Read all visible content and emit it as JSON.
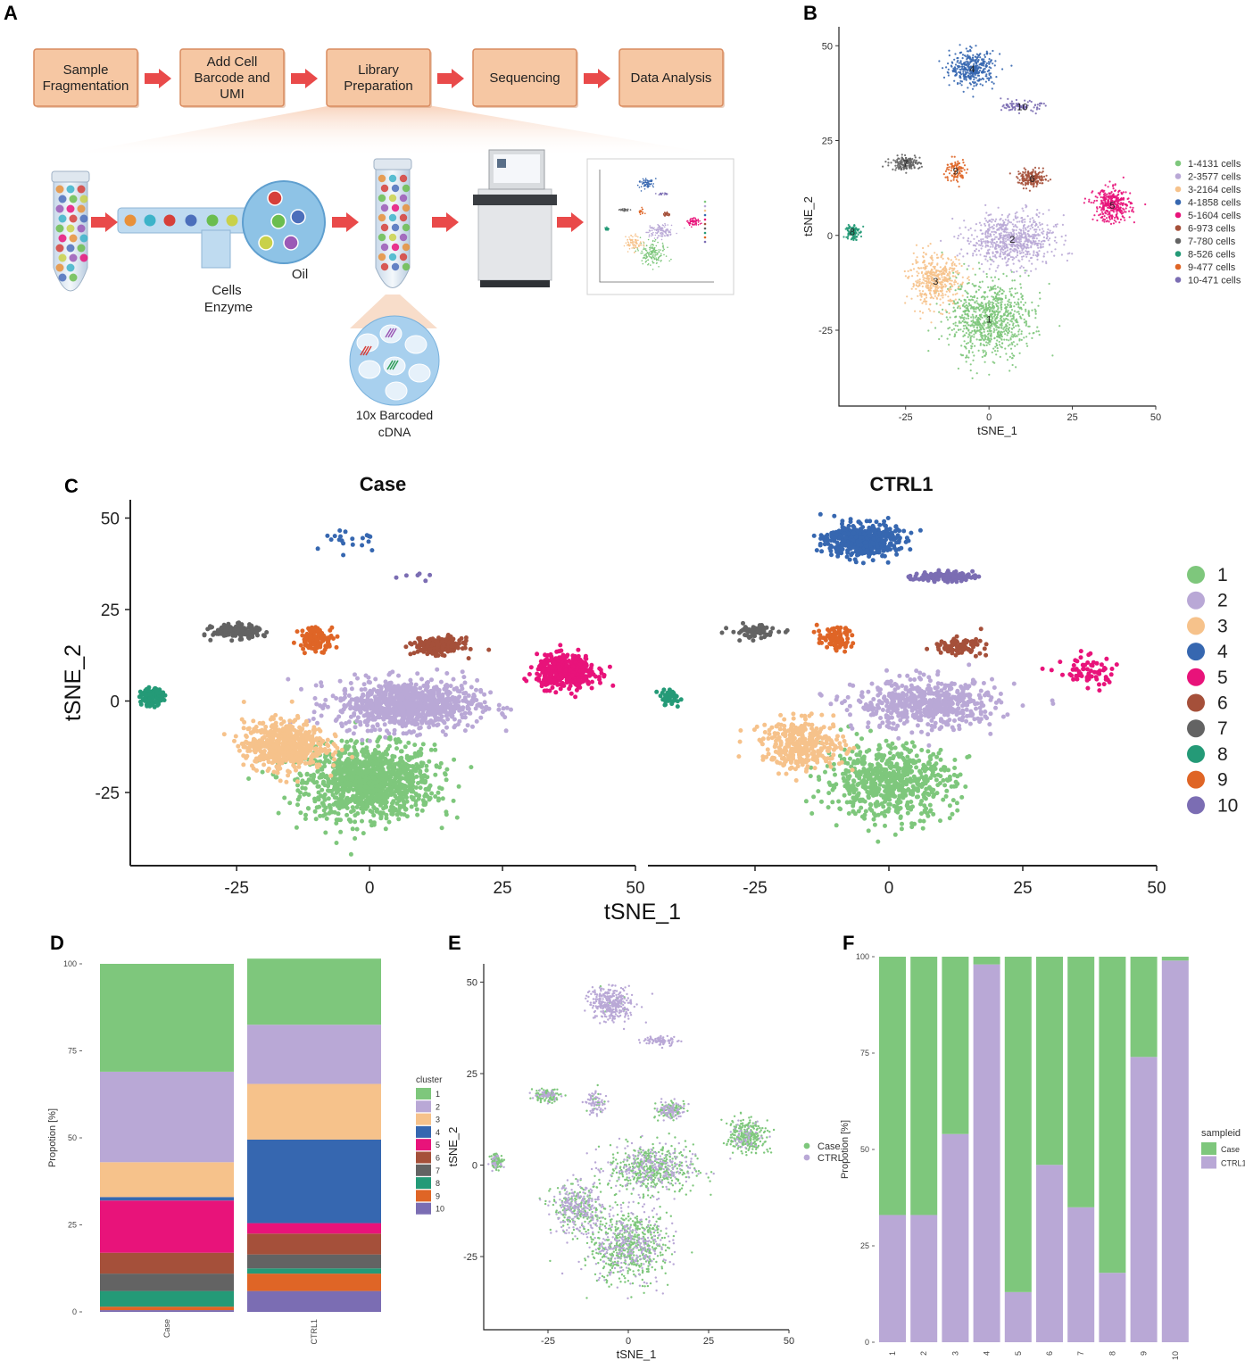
{
  "panels": {
    "a": "A",
    "b": "B",
    "c": "C",
    "d": "D",
    "e": "E",
    "f": "F"
  },
  "workflow": {
    "steps": [
      {
        "lines": [
          "Sample",
          "Fragmentation"
        ]
      },
      {
        "lines": [
          "Add Cell",
          "Barcode and",
          "UMI"
        ]
      },
      {
        "lines": [
          "Library",
          "Preparation"
        ]
      },
      {
        "lines": [
          "Sequencing"
        ]
      },
      {
        "lines": [
          "Data Analysis"
        ]
      }
    ],
    "labels": {
      "oil": "Oil",
      "cells": "Cells",
      "enzyme": "Enzyme",
      "barcoded1": "10x Barcoded",
      "barcoded2": "cDNA"
    }
  },
  "colors": {
    "c1": "#7ec77c",
    "c2": "#b9a8d6",
    "c3": "#f6c28b",
    "c4": "#3667b0",
    "c5": "#e8137a",
    "c6": "#a5503a",
    "c7": "#636363",
    "c8": "#249a77",
    "c9": "#df6526",
    "c10": "#7b6db3"
  },
  "chart_data": [
    {
      "id": "B",
      "type": "scatter",
      "title": "",
      "xlabel": "tSNE_1",
      "ylabel": "tSNE_2",
      "xlim": [
        -45,
        50
      ],
      "ylim": [
        -45,
        55
      ],
      "xticks": [
        "-25",
        "0",
        "25",
        "50"
      ],
      "yticks": [
        "-25",
        "0",
        "25",
        "50"
      ],
      "legend": [
        "1-4131  cells",
        "2-3577  cells",
        "3-2164  cells",
        "4-1858  cells",
        "5-1604  cells",
        "6-973  cells",
        "7-780  cells",
        "8-526  cells",
        "9-477  cells",
        "10-471  cells"
      ],
      "cluster_labels": [
        "1",
        "2",
        "3",
        "4",
        "5",
        "6",
        "7",
        "8",
        "9",
        "10"
      ]
    },
    {
      "id": "C",
      "type": "scatter",
      "titles": [
        "Case",
        "CTRL1"
      ],
      "xlabel": "tSNE_1",
      "ylabel": "tSNE_2",
      "xlim": [
        -45,
        50
      ],
      "ylim": [
        -45,
        55
      ],
      "xticks": [
        "-25",
        "0",
        "25",
        "50"
      ],
      "yticks": [
        "-25",
        "0",
        "25",
        "50"
      ],
      "legend": [
        "1",
        "2",
        "3",
        "4",
        "5",
        "6",
        "7",
        "8",
        "9",
        "10"
      ]
    },
    {
      "id": "D",
      "type": "bar",
      "stacked": true,
      "categories": [
        "Case",
        "CTRL1"
      ],
      "ylabel": "Propotion [%]",
      "ylim": [
        0,
        100
      ],
      "yticks": [
        "0",
        "25",
        "50",
        "75",
        "100"
      ],
      "legend_title": "cluster",
      "legend": [
        "1",
        "2",
        "3",
        "4",
        "5",
        "6",
        "7",
        "8",
        "9",
        "10"
      ],
      "series": [
        {
          "name": "1",
          "values": [
            31,
            19
          ]
        },
        {
          "name": "2",
          "values": [
            26,
            17
          ]
        },
        {
          "name": "3",
          "values": [
            10,
            16
          ]
        },
        {
          "name": "4",
          "values": [
            1,
            24
          ]
        },
        {
          "name": "5",
          "values": [
            15,
            3
          ]
        },
        {
          "name": "6",
          "values": [
            6,
            6
          ]
        },
        {
          "name": "7",
          "values": [
            5,
            4
          ]
        },
        {
          "name": "8",
          "values": [
            4.5,
            1.5
          ]
        },
        {
          "name": "9",
          "values": [
            1,
            5
          ]
        },
        {
          "name": "10",
          "values": [
            0.5,
            6
          ]
        }
      ]
    },
    {
      "id": "E",
      "type": "scatter",
      "xlabel": "tSNE_1",
      "ylabel": "tSNE_2",
      "xlim": [
        -45,
        50
      ],
      "ylim": [
        -45,
        55
      ],
      "xticks": [
        "-25",
        "0",
        "25",
        "50"
      ],
      "yticks": [
        "-25",
        "0",
        "25",
        "50"
      ],
      "legend": [
        "Case",
        "CTRL"
      ]
    },
    {
      "id": "F",
      "type": "bar",
      "stacked": true,
      "categories": [
        "1",
        "2",
        "3",
        "4",
        "5",
        "6",
        "7",
        "8",
        "9",
        "10"
      ],
      "ylabel": "Propotion [%]",
      "ylim": [
        0,
        100
      ],
      "yticks": [
        "0",
        "25",
        "50",
        "75",
        "100"
      ],
      "legend_title": "sampleid",
      "legend": [
        "Case",
        "CTRL1"
      ],
      "series": [
        {
          "name": "CTRL1",
          "values": [
            33,
            33,
            54,
            98,
            13,
            46,
            35,
            18,
            74,
            99
          ]
        },
        {
          "name": "Case",
          "values": [
            67,
            67,
            46,
            2,
            87,
            54,
            65,
            82,
            26,
            1
          ]
        }
      ]
    }
  ]
}
